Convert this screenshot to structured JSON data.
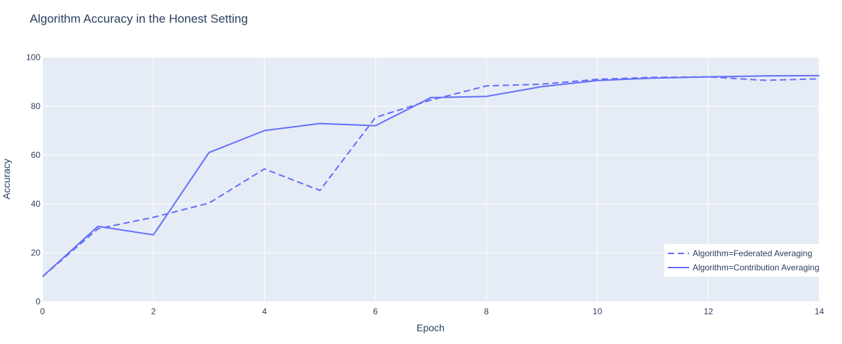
{
  "chart_data": {
    "type": "line",
    "title": "Algorithm Accuracy in the Honest Setting",
    "xlabel": "Epoch",
    "ylabel": "Accuracy",
    "xlim": [
      0,
      14
    ],
    "ylim": [
      0,
      100
    ],
    "xticks": [
      0,
      2,
      4,
      6,
      8,
      10,
      12,
      14
    ],
    "yticks": [
      0,
      20,
      40,
      60,
      80,
      100
    ],
    "grid": true,
    "legend_position": "bottom-right",
    "x": [
      0,
      1,
      2,
      3,
      4,
      5,
      6,
      7,
      8,
      9,
      10,
      11,
      12,
      13,
      14
    ],
    "series": [
      {
        "name": "Algorithm=Federated Averaging",
        "dash": "dash",
        "values": [
          10.2,
          29.8,
          34.5,
          40.3,
          54.3,
          45.5,
          75.4,
          82.5,
          88.3,
          89.0,
          91.0,
          91.8,
          92.0,
          90.6,
          91.2
        ]
      },
      {
        "name": "Algorithm=Contribution Averaging",
        "dash": "solid",
        "values": [
          10.2,
          30.8,
          27.3,
          61.0,
          70.0,
          72.9,
          72.0,
          83.5,
          84.0,
          88.0,
          90.5,
          91.5,
          92.0,
          92.4,
          92.5
        ]
      }
    ],
    "colors": {
      "line": "#636efa",
      "plot_bg": "#e5ecf6",
      "grid": "#ffffff",
      "text": "#2a3f5f"
    }
  }
}
